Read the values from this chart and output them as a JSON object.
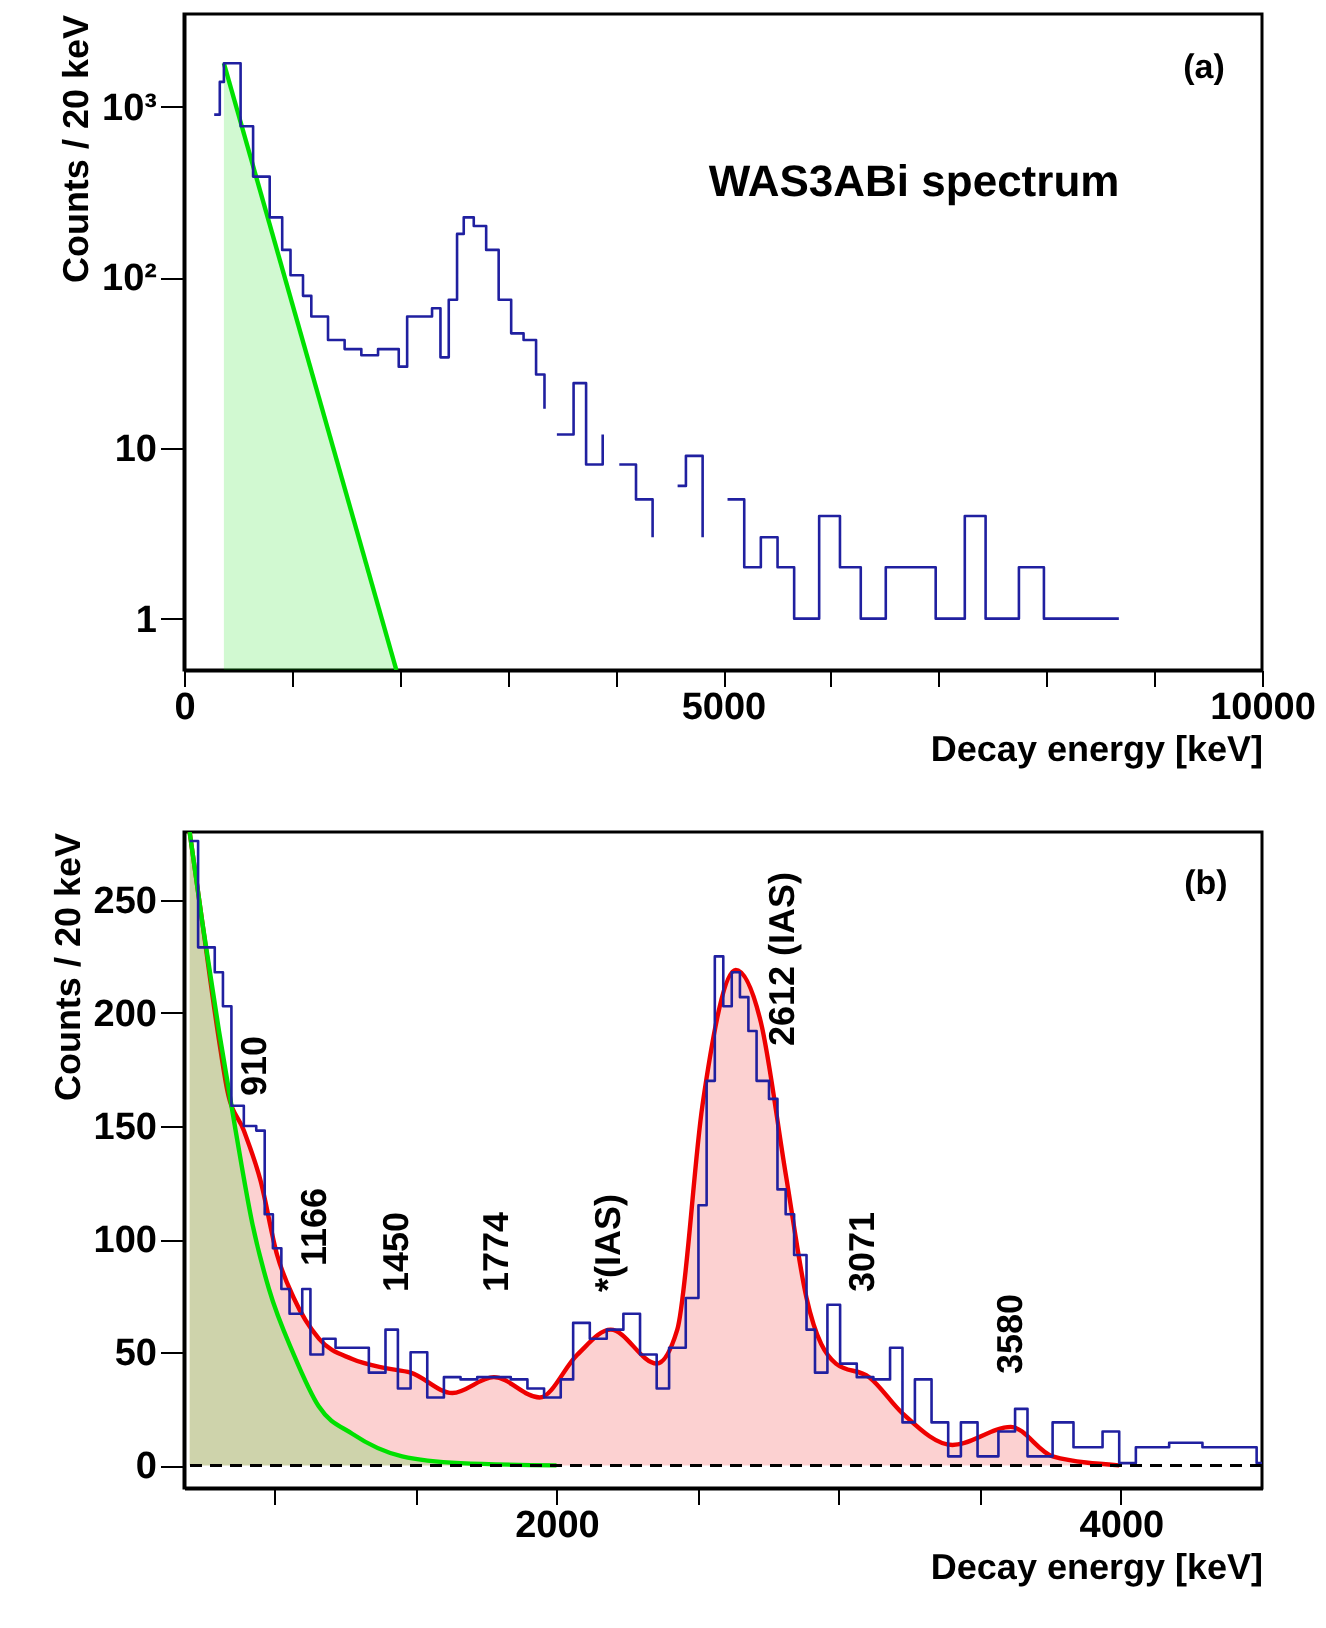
{
  "chart_data": [
    {
      "type": "step",
      "log": true,
      "xlabel": "Decay energy [keV]",
      "ylabel": "Counts / 20 keV",
      "xlim": [
        0,
        10000
      ],
      "ylim": [
        0.5,
        3500
      ],
      "xticks": [
        0,
        {
          "value": 1000,
          "label": null
        },
        {
          "value": 2000,
          "label": null
        },
        {
          "value": 3000,
          "label": null
        },
        {
          "value": 4000,
          "label": null
        },
        5000,
        {
          "value": 6000,
          "label": null
        },
        {
          "value": 7000,
          "label": null
        },
        {
          "value": 8000,
          "label": null
        },
        {
          "value": 9000,
          "label": null
        },
        10000
      ],
      "yticks": [
        1,
        10,
        {
          "value": 100,
          "label": "10²"
        },
        {
          "value": 1000,
          "label": "10³"
        }
      ],
      "annotations": [
        "(a)",
        "WAS3ABi spectrum"
      ],
      "series": [
        {
          "color": "#2020a0",
          "x": [
            280,
            332,
            370,
            525,
            641,
            795,
            911,
            988,
            1104,
            1181,
            1336,
            1490,
            1645,
            1800,
            1992,
            2070,
            2186,
            2301,
            2379,
            2456,
            2533,
            2595,
            2688,
            2803,
            2919,
            3035,
            3150,
            3266,
            3344,
            3390,
            3459,
            3614,
            3730,
            3884,
            3923,
            4038,
            4193,
            4347,
            4463,
            4579,
            4656,
            4811,
            4965,
            5042,
            5197,
            5351,
            5506,
            5660,
            5892,
            6085,
            6278,
            6510,
            6741,
            6973,
            7243,
            7436,
            7745,
            7977,
            8209,
            8518,
            8672
          ],
          "values": [
            900,
            1400,
            1800,
            770,
            390,
            225,
            145,
            103,
            78,
            59,
            43,
            38,
            35,
            38,
            30,
            59,
            59,
            66,
            34,
            74,
            180,
            225,
            200,
            145,
            74,
            47,
            43,
            27,
            17,
            null,
            12,
            24,
            8,
            12,
            null,
            8,
            5,
            3,
            null,
            6,
            9,
            3,
            null,
            5,
            2,
            3,
            2,
            1,
            4,
            2,
            1,
            2,
            2,
            1,
            4,
            1,
            2,
            1,
            1,
            1,
            1
          ]
        },
        {
          "type": "area",
          "color": "#00e000",
          "x": [
            370,
            1970
          ],
          "values": [
            1800,
            0.5
          ]
        }
      ]
    },
    {
      "type": "step",
      "xlabel": "Decay energy [keV]",
      "ylabel": "Counts / 20 keV",
      "xlim": [
        680,
        4500
      ],
      "ylim": [
        -10,
        280
      ],
      "xticks": [
        {
          "value": 1000,
          "label": null
        },
        {
          "value": 1500,
          "label": null
        },
        2000,
        {
          "value": 2500,
          "label": null
        },
        {
          "value": 3000,
          "label": null
        },
        {
          "value": 3500,
          "label": null
        },
        4000
      ],
      "yticks": [
        0,
        50,
        100,
        150,
        200,
        250
      ],
      "ref_lines": [
        {
          "axis": "y",
          "value": 0,
          "color": "#000000",
          "line_style": "dashed"
        }
      ],
      "annotations": [
        "(b)",
        "910",
        "1166",
        "1450",
        "1774",
        "*(IAS)",
        "2612 (IAS)",
        "3071",
        "3580"
      ],
      "series": [
        {
          "color": "#2020a0",
          "x": [
            700,
            730,
            789,
            818,
            848,
            892,
            936,
            966,
            995,
            1025,
            1054,
            1099,
            1128,
            1173,
            1217,
            1276,
            1335,
            1394,
            1438,
            1483,
            1542,
            1601,
            1660,
            1719,
            1778,
            1838,
            1897,
            1956,
            2015,
            2059,
            2118,
            2178,
            2237,
            2296,
            2355,
            2399,
            2458,
            2503,
            2532,
            2561,
            2591,
            2621,
            2650,
            2680,
            2709,
            2753,
            2783,
            2812,
            2842,
            2886,
            2916,
            2960,
            3005,
            3064,
            3123,
            3182,
            3226,
            3270,
            3329,
            3388,
            3433,
            3492,
            3566,
            3625,
            3669,
            3758,
            3832,
            3935,
            3994,
            4053,
            4171,
            4289,
            4407,
            4481,
            4500
          ],
          "values": [
            276,
            229,
            218,
            203,
            159,
            150,
            148,
            111,
            96,
            78,
            67,
            78,
            49,
            56,
            52,
            52,
            41,
            60,
            34,
            50,
            30,
            39,
            38,
            39,
            39,
            38,
            34,
            30,
            38,
            63,
            56,
            60,
            67,
            49,
            34,
            52,
            74,
            115,
            170,
            225,
            203,
            218,
            207,
            192,
            170,
            162,
            122,
            111,
            93,
            60,
            41,
            71,
            45,
            39,
            38,
            52,
            19,
            38,
            19,
            4,
            19,
            4,
            15,
            25,
            4,
            19,
            8,
            15,
            1,
            8,
            10,
            8,
            8,
            1,
            1
          ]
        },
        {
          "type": "area",
          "color": "#ee0000",
          "x": [
            700,
            745,
            804,
            833,
            892,
            951,
            1010,
            1069,
            1158,
            1276,
            1394,
            1483,
            1631,
            1778,
            1940,
            2074,
            2192,
            2355,
            2428,
            2517,
            2635,
            2724,
            2812,
            2886,
            2990,
            3108,
            3226,
            3403,
            3610,
            3758,
            3994
          ],
          "values": [
            280,
            240,
            188,
            166,
            148,
            126,
            93,
            74,
            56,
            47,
            43,
            41,
            32,
            39,
            30,
            49,
            60,
            45,
            60,
            159,
            219,
            196,
            129,
            74,
            45,
            39,
            23,
            9,
            17,
            4,
            0
          ]
        },
        {
          "type": "area",
          "color": "#00e000",
          "x": [
            700,
            745,
            804,
            863,
            922,
            981,
            1069,
            1158,
            1276,
            1453,
            1660,
            2000
          ],
          "values": [
            280,
            240,
            192,
            148,
            107,
            78,
            49,
            26,
            14,
            4,
            1,
            0
          ]
        }
      ]
    }
  ]
}
